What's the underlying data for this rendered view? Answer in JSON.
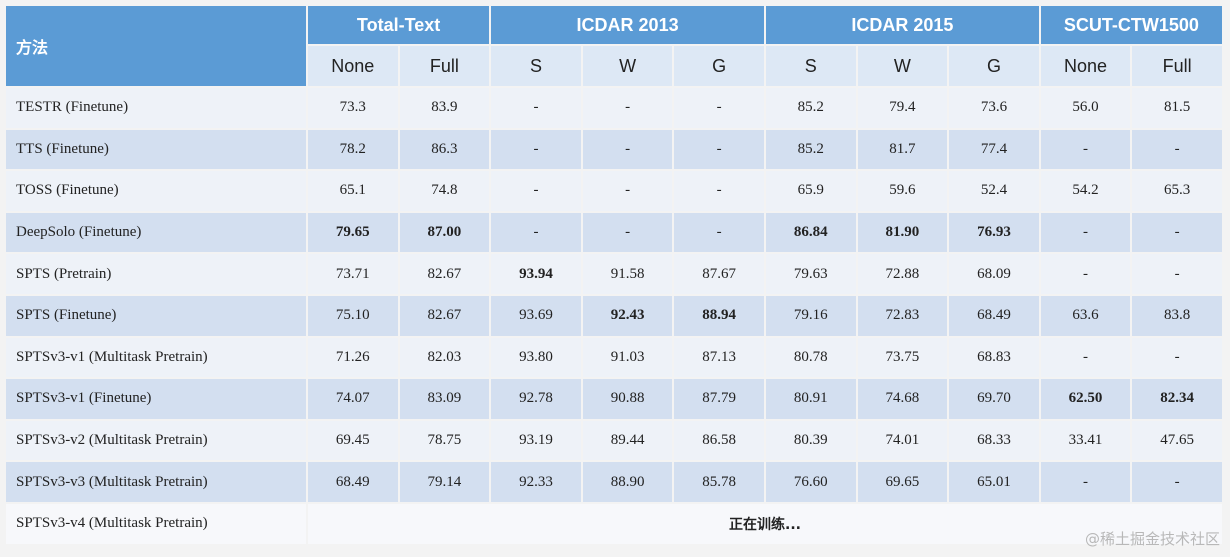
{
  "table": {
    "corner": "方法",
    "groups": [
      [
        "Total-Text",
        2
      ],
      [
        "ICDAR 2013",
        3
      ],
      [
        "ICDAR 2015",
        3
      ],
      [
        "SCUT-CTW1500",
        2
      ]
    ],
    "subheaders": [
      "None",
      "Full",
      "S",
      "W",
      "G",
      "S",
      "W",
      "G",
      "None",
      "Full"
    ],
    "rows": [
      [
        "TESTR (Finetune)",
        "73.3",
        "83.9",
        "-",
        "-",
        "-",
        "85.2",
        "79.4",
        "73.6",
        "56.0",
        "81.5"
      ],
      [
        "TTS (Finetune)",
        "78.2",
        "86.3",
        "-",
        "-",
        "-",
        "85.2",
        "81.7",
        "77.4",
        "-",
        "-"
      ],
      [
        "TOSS (Finetune)",
        "65.1",
        "74.8",
        "-",
        "-",
        "-",
        "65.9",
        "59.6",
        "52.4",
        "54.2",
        "65.3"
      ],
      [
        "DeepSolo (Finetune)",
        "79.65",
        "87.00",
        "-",
        "-",
        "-",
        "86.84",
        "81.90",
        "76.93",
        "-",
        "-"
      ],
      [
        "SPTS (Pretrain)",
        "73.71",
        "82.67",
        "93.94",
        "91.58",
        "87.67",
        "79.63",
        "72.88",
        "68.09",
        "-",
        "-"
      ],
      [
        "SPTS (Finetune)",
        "75.10",
        "82.67",
        "93.69",
        "92.43",
        "88.94",
        "79.16",
        "72.83",
        "68.49",
        "63.6",
        "83.8"
      ],
      [
        "SPTSv3-v1 (Multitask Pretrain)",
        "71.26",
        "82.03",
        "93.80",
        "91.03",
        "87.13",
        "80.78",
        "73.75",
        "68.83",
        "-",
        "-"
      ],
      [
        "SPTSv3-v1 (Finetune)",
        "74.07",
        "83.09",
        "92.78",
        "90.88",
        "87.79",
        "80.91",
        "74.68",
        "69.70",
        "62.50",
        "82.34"
      ],
      [
        "SPTSv3-v2 (Multitask Pretrain)",
        "69.45",
        "78.75",
        "93.19",
        "89.44",
        "86.58",
        "80.39",
        "74.01",
        "68.33",
        "33.41",
        "47.65"
      ],
      [
        "SPTSv3-v3 (Multitask Pretrain)",
        "68.49",
        "79.14",
        "92.33",
        "88.90",
        "85.78",
        "76.60",
        "69.65",
        "65.01",
        "-",
        "-"
      ],
      [
        "SPTSv3-v4 (Multitask Pretrain)",
        "正在训练..."
      ]
    ],
    "bold": [
      [
        3,
        1
      ],
      [
        3,
        2
      ],
      [
        3,
        6
      ],
      [
        3,
        7
      ],
      [
        3,
        8
      ],
      [
        4,
        3
      ],
      [
        5,
        4
      ],
      [
        5,
        5
      ],
      [
        7,
        9
      ],
      [
        7,
        10
      ]
    ]
  },
  "watermark": "@稀土掘金技术社区"
}
